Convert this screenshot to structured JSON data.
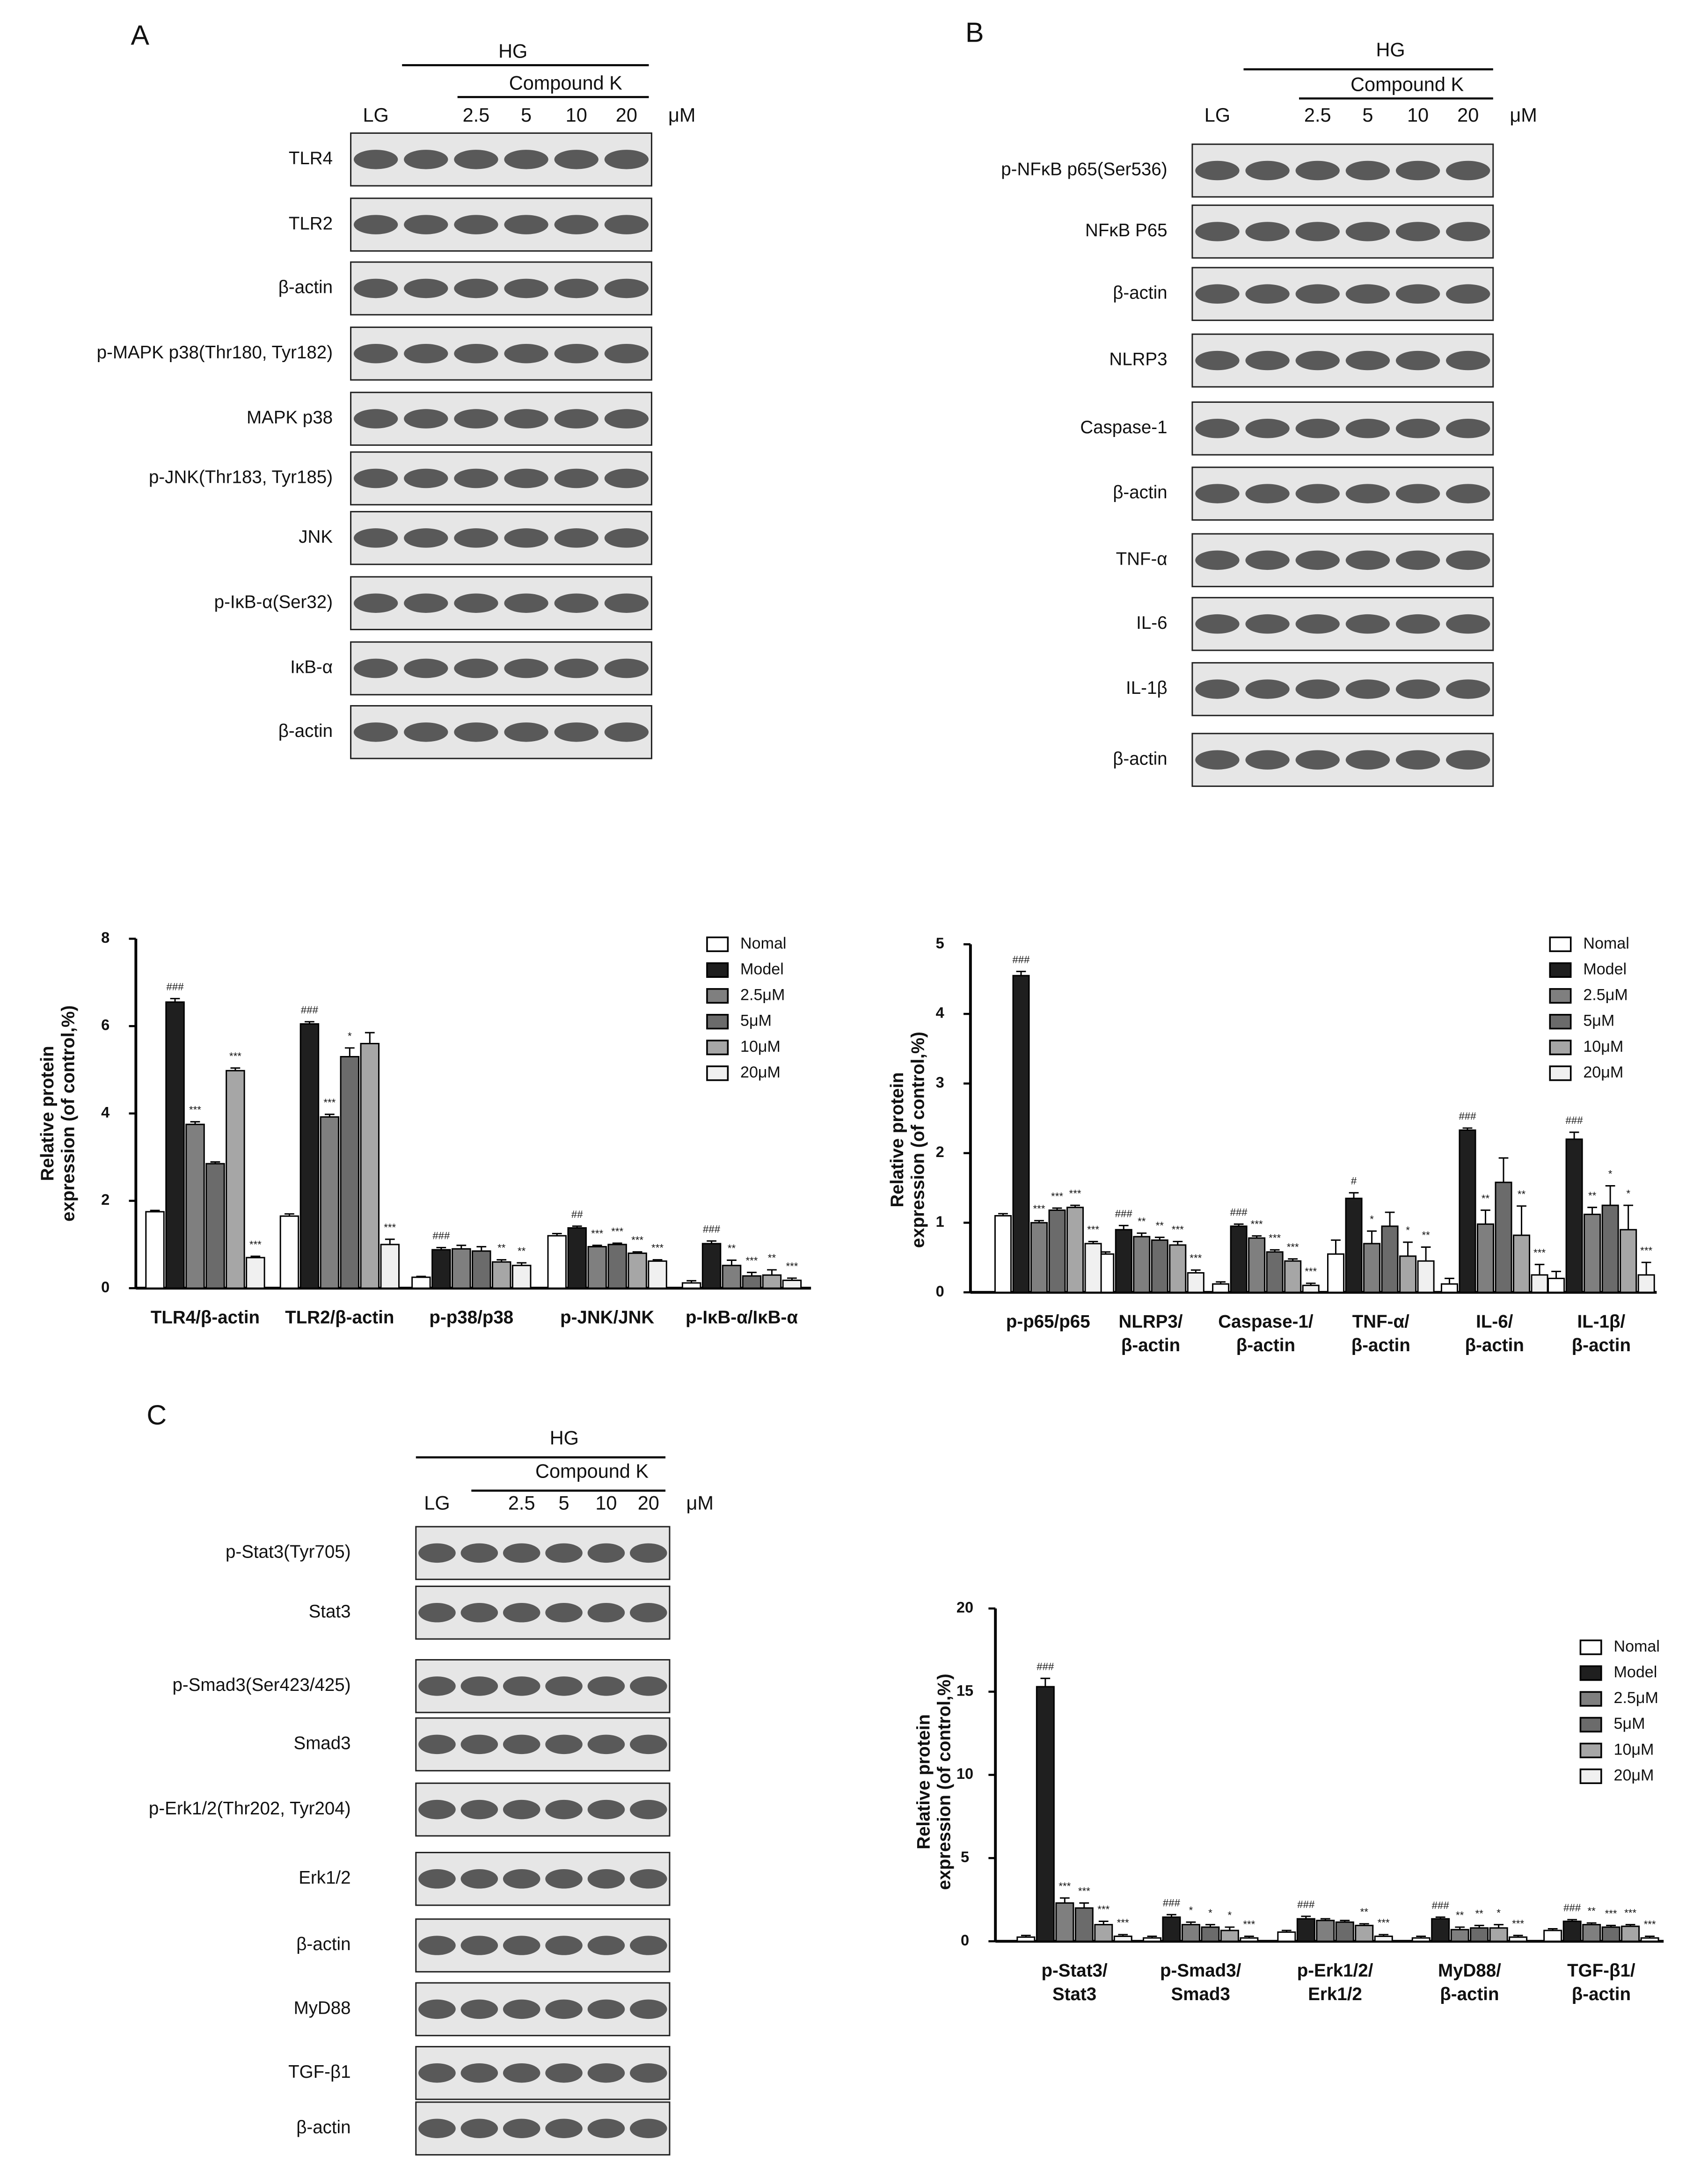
{
  "blots": [
    {
      "title": "A",
      "header": "HG",
      "subheader": "Compound K",
      "lanes": [
        "LG",
        null,
        "2.5",
        "5",
        "10",
        "20"
      ],
      "unit": "μM",
      "rows": [
        "TLR4",
        "TLR2",
        "β-actin",
        "p-MAPK p38(Thr180, Tyr182)",
        "MAPK p38",
        "p-JNK(Thr183, Tyr185)",
        "JNK",
        "p-IκB-α(Ser32)",
        "IκB-α",
        "β-actin"
      ]
    },
    {
      "title": "B",
      "header": "HG",
      "subheader": "Compound K",
      "lanes": [
        "LG",
        null,
        "2.5",
        "5",
        "10",
        "20"
      ],
      "unit": "μM",
      "rows": [
        "p-NFκB p65(Ser536)",
        "NFκB P65",
        "β-actin",
        "NLRP3",
        "Caspase-1",
        "β-actin",
        "TNF-α",
        "IL-6",
        "IL-1β",
        "β-actin"
      ]
    },
    {
      "title": "C",
      "header": "HG",
      "subheader": "Compound K",
      "lanes": [
        "LG",
        null,
        "2.5",
        "5",
        "10",
        "20"
      ],
      "unit": "μM",
      "rows": [
        "p-Stat3(Tyr705)",
        "Stat3",
        "p-Smad3(Ser423/425)",
        "Smad3",
        "p-Erk1/2(Thr202, Tyr204)",
        "Erk1/2",
        "β-actin",
        "MyD88",
        "TGF-β1",
        "β-actin"
      ]
    }
  ],
  "chart_data": [
    {
      "type": "bar",
      "ylabel": [
        "Relative protein",
        "expression (of control,%)"
      ],
      "categories": [
        [
          "TLR4/β-actin"
        ],
        [
          "TLR2/β-actin"
        ],
        [
          "p-p38/p38"
        ],
        [
          "p-JNK/JNK"
        ],
        [
          "p-IκB-α/IκB-α"
        ]
      ],
      "ylim": [
        0,
        8
      ],
      "yticks": [
        0,
        2,
        4,
        6,
        8
      ],
      "legend": "upper right",
      "series": [
        {
          "name": "Nomal",
          "color": "#ffffff",
          "values": [
            1.75,
            1.65,
            0.25,
            1.2,
            0.12
          ],
          "errors": [
            0.03,
            0.05,
            0.02,
            0.05,
            0.05
          ],
          "annotations": [
            null,
            null,
            null,
            null,
            null
          ]
        },
        {
          "name": "Model",
          "color": "#1f1f1f",
          "values": [
            6.55,
            6.05,
            0.88,
            1.38,
            1.02
          ],
          "errors": [
            0.08,
            0.05,
            0.05,
            0.04,
            0.06
          ],
          "annotations": [
            "###",
            "###",
            "###",
            "##",
            "###"
          ]
        },
        {
          "name": "2.5μM",
          "color": "#7f7f7f",
          "values": [
            3.75,
            3.92,
            0.9,
            0.95,
            0.52
          ],
          "errors": [
            0.06,
            0.06,
            0.08,
            0.03,
            0.12
          ],
          "annotations": [
            "***",
            "***",
            null,
            "***",
            "**"
          ]
        },
        {
          "name": "5μM",
          "color": "#6b6b6b",
          "values": [
            2.85,
            5.3,
            0.85,
            1.0,
            0.28
          ],
          "errors": [
            0.04,
            0.2,
            0.1,
            0.03,
            0.08
          ],
          "annotations": [
            null,
            "*",
            null,
            "***",
            "***"
          ]
        },
        {
          "name": "10μM",
          "color": "#a6a6a6",
          "values": [
            4.98,
            5.6,
            0.6,
            0.8,
            0.3
          ],
          "errors": [
            0.06,
            0.25,
            0.05,
            0.03,
            0.12
          ],
          "annotations": [
            "***",
            null,
            "**",
            "***",
            "**"
          ]
        },
        {
          "name": "20μM",
          "color": "#f0f0f0",
          "values": [
            0.7,
            1.0,
            0.52,
            0.62,
            0.18
          ],
          "errors": [
            0.03,
            0.12,
            0.06,
            0.03,
            0.05
          ],
          "annotations": [
            "***",
            "***",
            "**",
            "***",
            "***"
          ]
        }
      ]
    },
    {
      "type": "bar",
      "ylabel": [
        "Relative protein",
        "expression (of control,%)"
      ],
      "categories": [
        [
          "p-p65/p65"
        ],
        [
          "NLRP3/",
          "β-actin"
        ],
        [
          "Caspase-1/",
          "β-actin"
        ],
        [
          "TNF-α/",
          "β-actin"
        ],
        [
          "IL-6/",
          "β-actin"
        ],
        [
          "IL-1β/",
          "β-actin"
        ]
      ],
      "ylim": [
        0,
        5
      ],
      "yticks": [
        0,
        1,
        2,
        3,
        4,
        5
      ],
      "legend": "upper right",
      "series": [
        {
          "name": "Nomal",
          "color": "#ffffff",
          "values": [
            1.1,
            0.55,
            0.12,
            0.55,
            0.12,
            0.2
          ],
          "errors": [
            0.03,
            0.03,
            0.03,
            0.2,
            0.08,
            0.1
          ],
          "annotations": [
            null,
            null,
            null,
            null,
            null,
            null
          ]
        },
        {
          "name": "Model",
          "color": "#1f1f1f",
          "values": [
            4.55,
            0.9,
            0.95,
            1.35,
            2.33,
            2.2
          ],
          "errors": [
            0.06,
            0.06,
            0.03,
            0.08,
            0.03,
            0.1
          ],
          "annotations": [
            "###",
            "###",
            "###",
            "#",
            "###",
            "###"
          ]
        },
        {
          "name": "2.5μM",
          "color": "#7f7f7f",
          "values": [
            1.0,
            0.8,
            0.78,
            0.7,
            0.98,
            1.12
          ],
          "errors": [
            0.03,
            0.05,
            0.03,
            0.18,
            0.2,
            0.1
          ],
          "annotations": [
            "***",
            "**",
            "***",
            "*",
            "**",
            "**"
          ]
        },
        {
          "name": "5μM",
          "color": "#6b6b6b",
          "values": [
            1.18,
            0.75,
            0.58,
            0.95,
            1.58,
            1.25
          ],
          "errors": [
            0.03,
            0.04,
            0.03,
            0.2,
            0.35,
            0.28
          ],
          "annotations": [
            "***",
            "**",
            "***",
            null,
            null,
            "*"
          ]
        },
        {
          "name": "10μM",
          "color": "#a6a6a6",
          "values": [
            1.22,
            0.68,
            0.45,
            0.52,
            0.82,
            0.9
          ],
          "errors": [
            0.03,
            0.05,
            0.03,
            0.2,
            0.42,
            0.35
          ],
          "annotations": [
            "***",
            "***",
            "***",
            "*",
            "**",
            "*"
          ]
        },
        {
          "name": "20μM",
          "color": "#f0f0f0",
          "values": [
            0.7,
            0.28,
            0.1,
            0.45,
            0.25,
            0.25
          ],
          "errors": [
            0.03,
            0.04,
            0.03,
            0.2,
            0.15,
            0.18
          ],
          "annotations": [
            "***",
            "***",
            "***",
            "**",
            "***",
            "***"
          ]
        }
      ]
    },
    {
      "type": "bar",
      "ylabel": [
        "Relative protein",
        "expression (of control,%)"
      ],
      "categories": [
        [
          "p-Stat3/",
          "Stat3"
        ],
        [
          "p-Smad3/",
          "Smad3"
        ],
        [
          "p-Erk1/2/",
          "Erk1/2"
        ],
        [
          "MyD88/",
          "β-actin"
        ],
        [
          "TGF-β1/",
          "β-actin"
        ]
      ],
      "ylim": [
        0,
        20
      ],
      "yticks": [
        0,
        5,
        10,
        15,
        20
      ],
      "legend": "upper right",
      "series": [
        {
          "name": "Nomal",
          "color": "#ffffff",
          "values": [
            0.25,
            0.2,
            0.55,
            0.2,
            0.65
          ],
          "errors": [
            0.1,
            0.1,
            0.1,
            0.1,
            0.1
          ],
          "annotations": [
            null,
            null,
            null,
            null,
            null
          ]
        },
        {
          "name": "Model",
          "color": "#1f1f1f",
          "values": [
            15.3,
            1.45,
            1.35,
            1.35,
            1.2
          ],
          "errors": [
            0.5,
            0.15,
            0.15,
            0.1,
            0.1
          ],
          "annotations": [
            "###",
            "###",
            "###",
            "###",
            "###"
          ]
        },
        {
          "name": "2.5μM",
          "color": "#7f7f7f",
          "values": [
            2.3,
            1.0,
            1.25,
            0.7,
            1.0
          ],
          "errors": [
            0.3,
            0.15,
            0.1,
            0.15,
            0.1
          ],
          "annotations": [
            "***",
            "*",
            null,
            "**",
            "**"
          ]
        },
        {
          "name": "5μM",
          "color": "#6b6b6b",
          "values": [
            2.0,
            0.85,
            1.15,
            0.8,
            0.85
          ],
          "errors": [
            0.3,
            0.15,
            0.1,
            0.15,
            0.1
          ],
          "annotations": [
            "***",
            "*",
            null,
            "**",
            "***"
          ]
        },
        {
          "name": "10μM",
          "color": "#a6a6a6",
          "values": [
            1.0,
            0.65,
            0.95,
            0.8,
            0.9
          ],
          "errors": [
            0.2,
            0.2,
            0.1,
            0.2,
            0.1
          ],
          "annotations": [
            "***",
            "*",
            "**",
            "*",
            "***"
          ]
        },
        {
          "name": "20μM",
          "color": "#f0f0f0",
          "values": [
            0.3,
            0.2,
            0.3,
            0.25,
            0.2
          ],
          "errors": [
            0.1,
            0.1,
            0.1,
            0.1,
            0.1
          ],
          "annotations": [
            "***",
            "***",
            "***",
            "***",
            "***"
          ]
        }
      ]
    }
  ]
}
